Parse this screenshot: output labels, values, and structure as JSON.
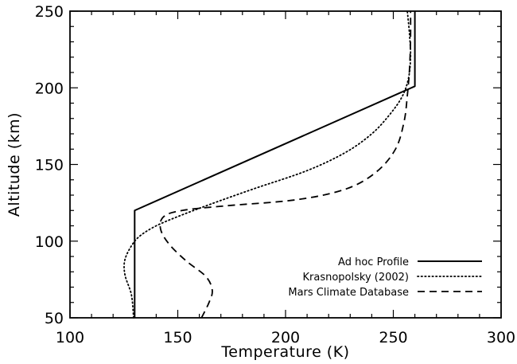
{
  "chart_data": {
    "type": "line",
    "xlabel": "Temperature (K)",
    "ylabel": "Altitude (km)",
    "xlim": [
      100,
      300
    ],
    "ylim": [
      50,
      250
    ],
    "xticks": [
      "100",
      "150",
      "200",
      "250",
      "300"
    ],
    "yticks": [
      "50",
      "100",
      "150",
      "200",
      "250"
    ],
    "grid": false,
    "legend_position": "bottom-right",
    "series": [
      {
        "name": "Ad hoc Profile",
        "style": "solid",
        "x": [
          130,
          130,
          260,
          260
        ],
        "y": [
          50,
          120,
          201,
          250
        ]
      },
      {
        "name": "Krasnopolsky (2002)",
        "style": "dotted",
        "x": [
          129.5,
          128.5,
          125.5,
          125.5,
          129,
          133,
          140,
          150,
          165,
          185,
          210,
          228,
          240,
          248,
          254,
          257,
          258,
          257.5,
          256.5
        ],
        "y": [
          50,
          65,
          78,
          88,
          98,
          104,
          110,
          116,
          124,
          134,
          146,
          158,
          170,
          182,
          194,
          206,
          220,
          235,
          250
        ]
      },
      {
        "name": "Mars Climate Database",
        "style": "dashed",
        "x": [
          161,
          164.5,
          166,
          163,
          154,
          146,
          142,
          143.5,
          152,
          172,
          205,
          228,
          242,
          251,
          255,
          256.5,
          257.5,
          258,
          258
        ],
        "y": [
          50,
          60,
          68,
          77,
          87,
          98,
          108,
          116,
          120,
          123,
          127,
          134,
          145,
          160,
          178,
          195,
          212,
          232,
          250
        ]
      }
    ]
  }
}
